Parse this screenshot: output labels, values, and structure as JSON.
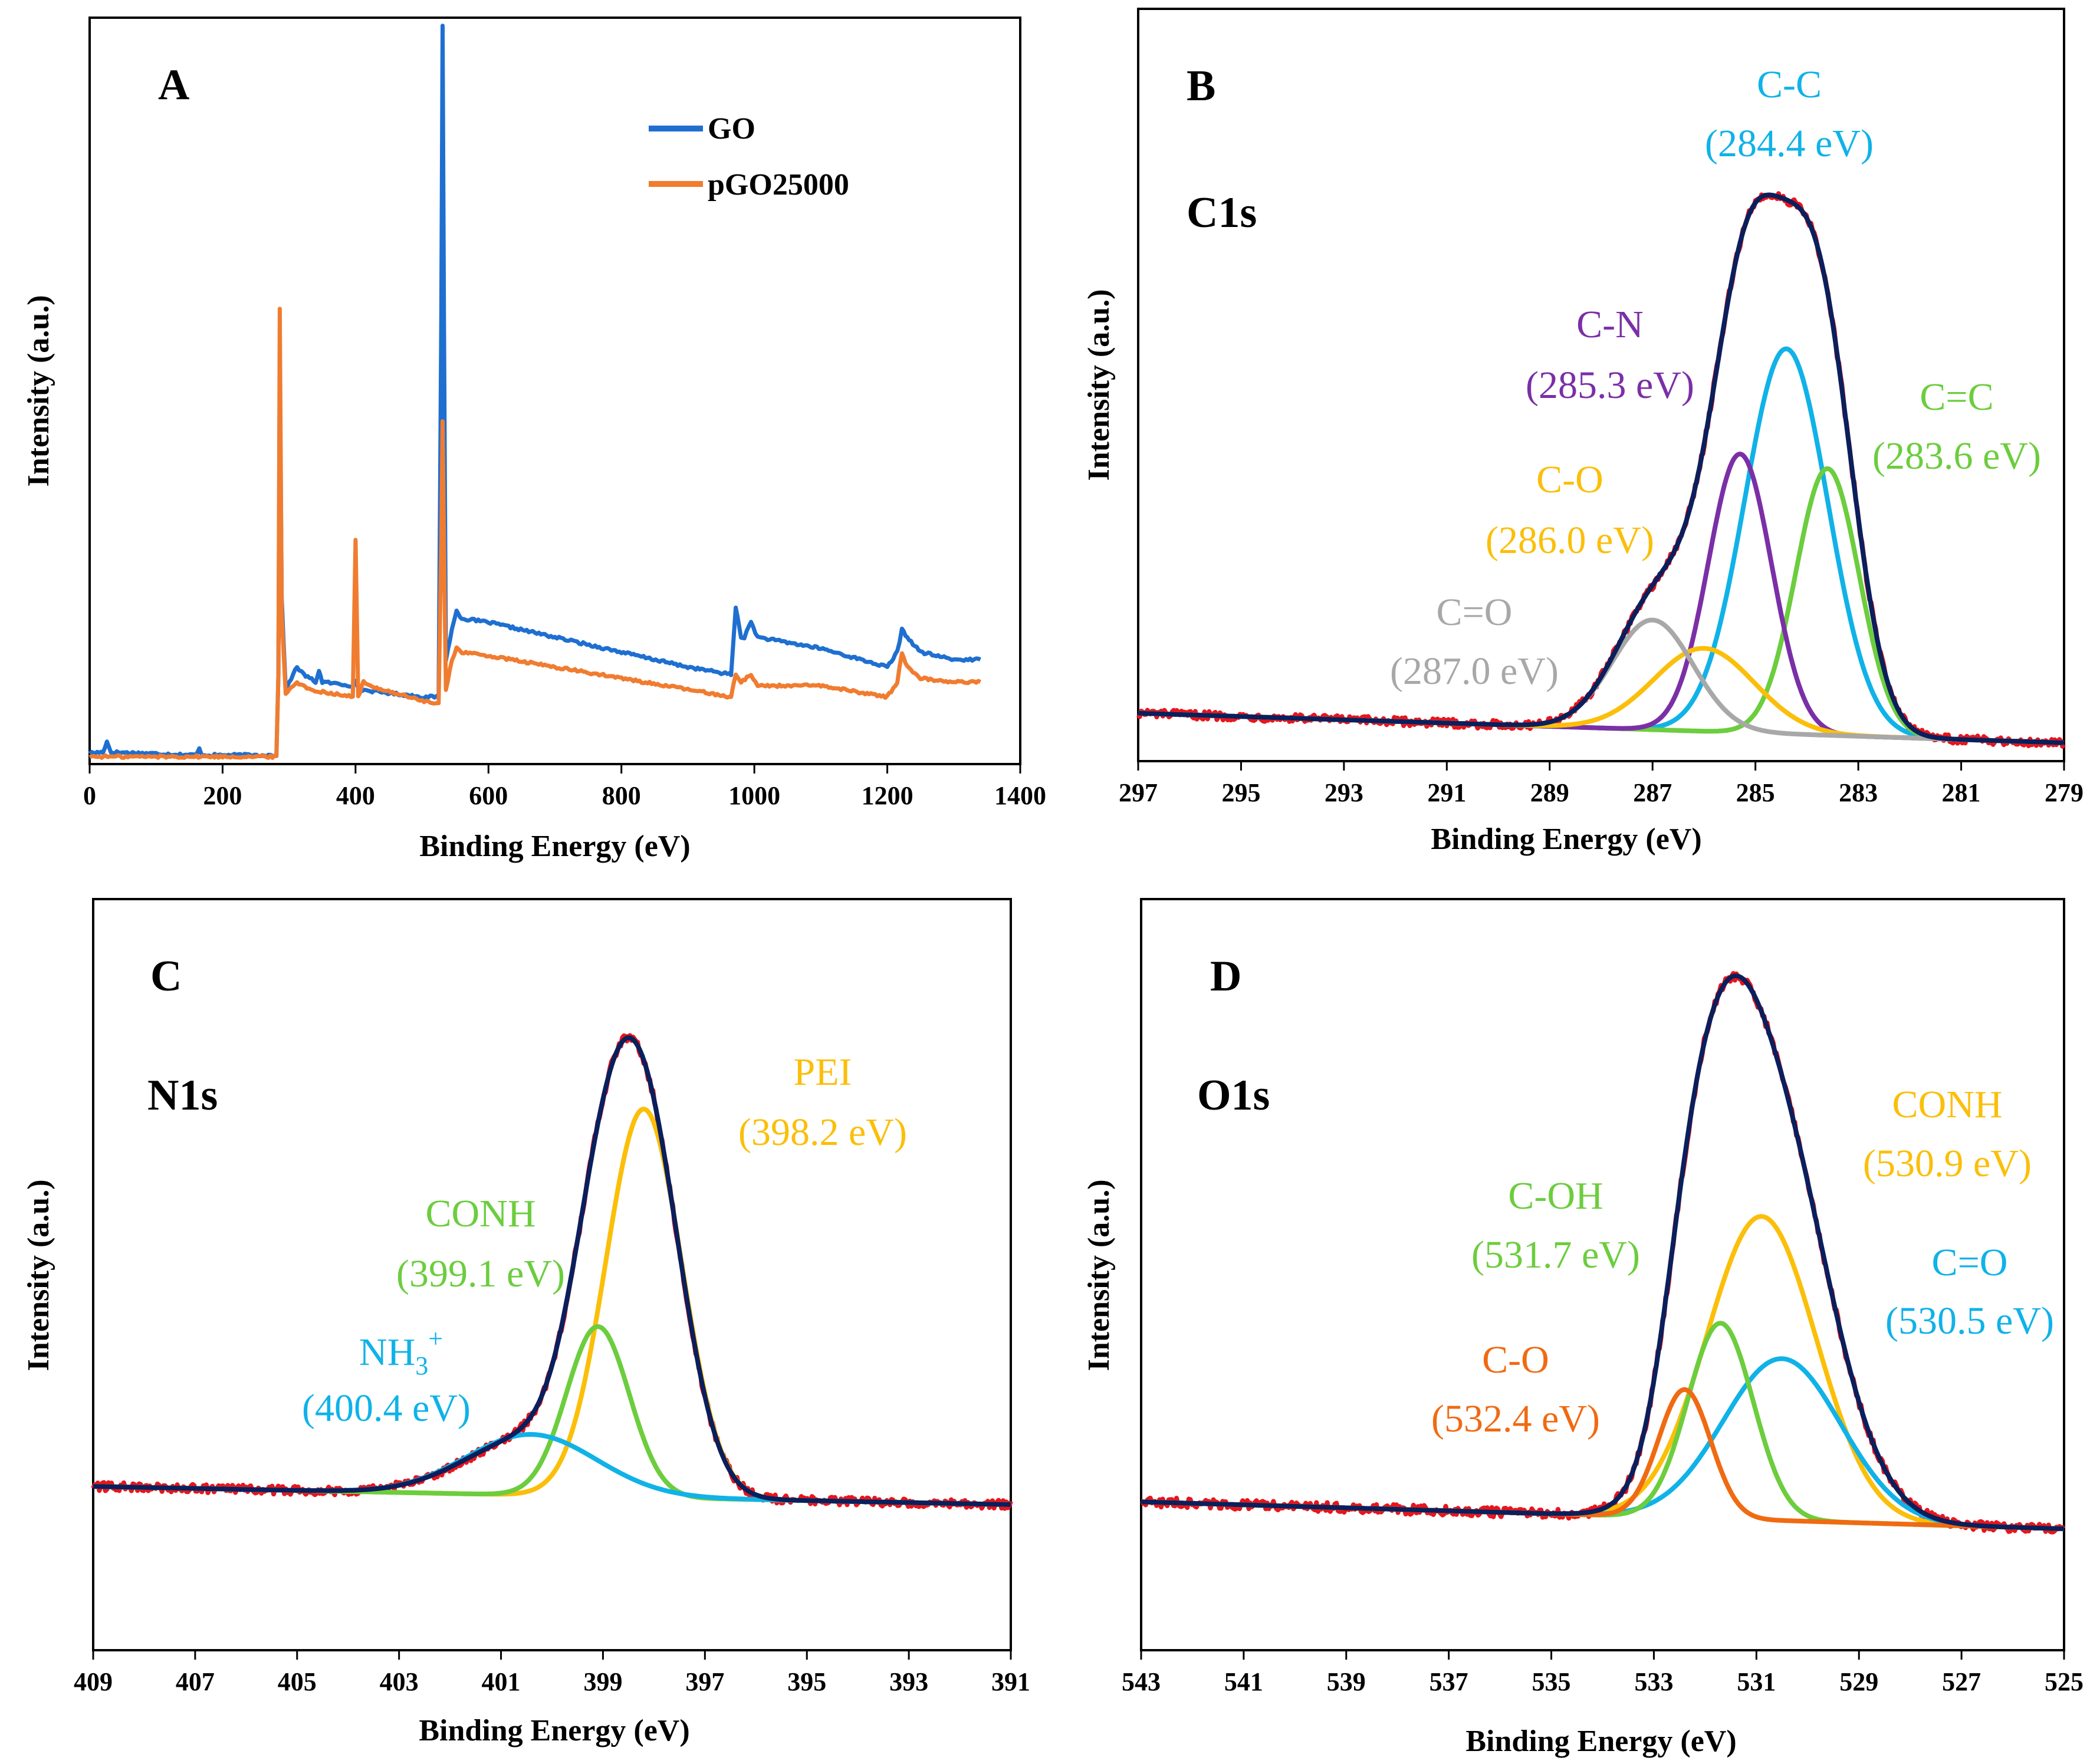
{
  "colors": {
    "blue": "#1f6fd0",
    "orange": "#f07c30",
    "red": "#e8151b",
    "navy": "#0a1f5c",
    "cyan": "#10b2e8",
    "purple": "#7b2fa6",
    "green": "#6ccd3e",
    "yellow": "#fbbf0a",
    "gray": "#a8a8a8",
    "dark_orange": "#f06a12"
  },
  "chart_data": [
    {
      "id": "A",
      "type": "line",
      "panel_label": "A",
      "xlabel": "Binding Energy (eV)",
      "ylabel": "Intensity (a.u.)",
      "xlim": [
        0,
        1400
      ],
      "ylim": [
        0,
        100
      ],
      "xticks": [
        0,
        200,
        400,
        600,
        800,
        1000,
        1200,
        1400
      ],
      "legend": {
        "position": "top-center",
        "entries": [
          "GO",
          "pGO25000"
        ]
      },
      "series": [
        {
          "name": "GO",
          "color_key": "blue",
          "points": [
            [
              0,
              1.5
            ],
            [
              20,
              1.6
            ],
            [
              26,
              3
            ],
            [
              32,
              1.6
            ],
            [
              100,
              1.4
            ],
            [
              160,
              1.2
            ],
            [
              165,
              2
            ],
            [
              170,
              1.2
            ],
            [
              281,
              1.2
            ],
            [
              284,
              12
            ],
            [
              286,
              55
            ],
            [
              289,
              22
            ],
            [
              295,
              10
            ],
            [
              306,
              12
            ],
            [
              312,
              13
            ],
            [
              322,
              12
            ],
            [
              340,
              11
            ],
            [
              345,
              12.5
            ],
            [
              350,
              11
            ],
            [
              396,
              10.5
            ],
            [
              400,
              11
            ],
            [
              404,
              10
            ],
            [
              500,
              9
            ],
            [
              525,
              9
            ],
            [
              529,
              60
            ],
            [
              531,
              99
            ],
            [
              533,
              60
            ],
            [
              536,
              14
            ],
            [
              545,
              18
            ],
            [
              552,
              20.5
            ],
            [
              560,
              19.5
            ],
            [
              600,
              19
            ],
            [
              700,
              17
            ],
            [
              800,
              15
            ],
            [
              900,
              13
            ],
            [
              965,
              12
            ],
            [
              972,
              21
            ],
            [
              980,
              17
            ],
            [
              985,
              17
            ],
            [
              995,
              19
            ],
            [
              1005,
              17
            ],
            [
              1100,
              15.5
            ],
            [
              1200,
              13
            ],
            [
              1215,
              15
            ],
            [
              1222,
              18
            ],
            [
              1230,
              17
            ],
            [
              1250,
              15
            ],
            [
              1300,
              14
            ],
            [
              1340,
              14
            ]
          ]
        },
        {
          "name": "pGO25000",
          "color_key": "orange",
          "points": [
            [
              0,
              1
            ],
            [
              100,
              1
            ],
            [
              200,
              1
            ],
            [
              281,
              1
            ],
            [
              284,
              12
            ],
            [
              286,
              61
            ],
            [
              289,
              20
            ],
            [
              295,
              9.5
            ],
            [
              306,
              10.5
            ],
            [
              312,
              11
            ],
            [
              330,
              10
            ],
            [
              396,
              9
            ],
            [
              400,
              30
            ],
            [
              402,
              20
            ],
            [
              404,
              9
            ],
            [
              412,
              11
            ],
            [
              420,
              10.5
            ],
            [
              500,
              8.5
            ],
            [
              525,
              8
            ],
            [
              529,
              30
            ],
            [
              531,
              46
            ],
            [
              533,
              30
            ],
            [
              536,
              10
            ],
            [
              545,
              14
            ],
            [
              552,
              15.5
            ],
            [
              560,
              15
            ],
            [
              600,
              14.5
            ],
            [
              700,
              13
            ],
            [
              800,
              11.5
            ],
            [
              900,
              10
            ],
            [
              965,
              9
            ],
            [
              972,
              12
            ],
            [
              980,
              11
            ],
            [
              995,
              12
            ],
            [
              1005,
              10.5
            ],
            [
              1100,
              10.5
            ],
            [
              1200,
              9
            ],
            [
              1215,
              11
            ],
            [
              1222,
              15
            ],
            [
              1230,
              13
            ],
            [
              1250,
              11.5
            ],
            [
              1300,
              11
            ],
            [
              1340,
              11
            ]
          ]
        }
      ]
    },
    {
      "id": "B",
      "type": "line",
      "panel_label": "B",
      "core_label": "C1s",
      "xlabel": "Binding Energy (eV)",
      "ylabel": "Intensity (a.u.)",
      "xlim": [
        297,
        279
      ],
      "ylim": [
        0,
        100
      ],
      "xticks": [
        297,
        295,
        293,
        291,
        289,
        287,
        285,
        283,
        281,
        279
      ],
      "baseline": {
        "start_value": 6.5,
        "end_value": 1.5
      },
      "peaks": [
        {
          "name": "C-C",
          "center": 284.4,
          "height": 65,
          "fwhm": 1.9,
          "color_key": "cyan",
          "label": "C-C",
          "energy_label": "(284.4 eV)"
        },
        {
          "name": "C=C",
          "center": 283.6,
          "height": 45,
          "fwhm": 1.45,
          "color_key": "green",
          "label": "C=C",
          "energy_label": "(283.6 eV)"
        },
        {
          "name": "C-N",
          "center": 285.3,
          "height": 47,
          "fwhm": 1.45,
          "color_key": "purple",
          "label": "C-N",
          "energy_label": "(285.3 eV)"
        },
        {
          "name": "C-O",
          "center": 286.0,
          "height": 14,
          "fwhm": 2.3,
          "color_key": "yellow",
          "label": "C-O",
          "energy_label": "(286.0 eV)"
        },
        {
          "name": "C=O",
          "center": 287.0,
          "height": 18.5,
          "fwhm": 1.85,
          "color_key": "gray",
          "label": "C=O",
          "energy_label": "(287.0 eV)"
        }
      ],
      "envelope_scale": 0.865,
      "envelope_color_key": "navy",
      "raw_color_key": "red"
    },
    {
      "id": "C",
      "type": "line",
      "panel_label": "C",
      "core_label": "N1s",
      "xlabel": "Binding Energy (eV)",
      "ylabel": "Intensity (a.u.)",
      "xlim": [
        409,
        391
      ],
      "ylim": [
        0,
        100
      ],
      "xticks": [
        409,
        407,
        405,
        403,
        401,
        399,
        397,
        395,
        393,
        391
      ],
      "baseline": {
        "start_value": 27,
        "end_value": 24
      },
      "peaks": [
        {
          "name": "PEI",
          "center": 398.2,
          "height": 64,
          "fwhm": 1.75,
          "color_key": "yellow",
          "label": "PEI",
          "energy_label": "(398.2 eV)"
        },
        {
          "name": "CONH",
          "center": 399.1,
          "height": 28,
          "fwhm": 1.45,
          "color_key": "green",
          "label": "CONH",
          "energy_label": "(399.1 eV)"
        },
        {
          "name": "NH3+",
          "center": 400.4,
          "height": 10,
          "fwhm": 3.0,
          "color_key": "cyan",
          "label": "NH",
          "label_sub": "3",
          "label_sup": "+",
          "energy_label": "(400.4 eV)"
        }
      ],
      "envelope_scale": 0.95,
      "envelope_color_key": "navy",
      "raw_color_key": "red"
    },
    {
      "id": "D",
      "type": "line",
      "panel_label": "D",
      "core_label": "O1s",
      "xlabel": "Binding Energy (eV)",
      "ylabel": "Intensity (a.u.)",
      "xlim": [
        543,
        525
      ],
      "ylim": [
        0,
        100
      ],
      "xticks": [
        543,
        541,
        539,
        537,
        535,
        533,
        531,
        529,
        527,
        525
      ],
      "baseline": {
        "start_value": 22,
        "end_value": 18
      },
      "peaks": [
        {
          "name": "CONH",
          "center": 530.9,
          "height": 45,
          "fwhm": 2.5,
          "color_key": "yellow",
          "label": "CONH",
          "energy_label": "(530.9 eV)"
        },
        {
          "name": "C=O",
          "center": 530.5,
          "height": 24,
          "fwhm": 2.7,
          "color_key": "cyan",
          "label": "C=O",
          "energy_label": "(530.5 eV)"
        },
        {
          "name": "C-OH",
          "center": 531.7,
          "height": 29,
          "fwhm": 1.5,
          "color_key": "green",
          "label": "C-OH",
          "energy_label": "(531.7 eV)"
        },
        {
          "name": "C-O",
          "center": 532.4,
          "height": 19,
          "fwhm": 1.2,
          "color_key": "dark_orange",
          "label": "C-O",
          "energy_label": "(532.4 eV)"
        }
      ],
      "envelope_scale": 0.93,
      "envelope_color_key": "navy",
      "raw_color_key": "red"
    }
  ]
}
